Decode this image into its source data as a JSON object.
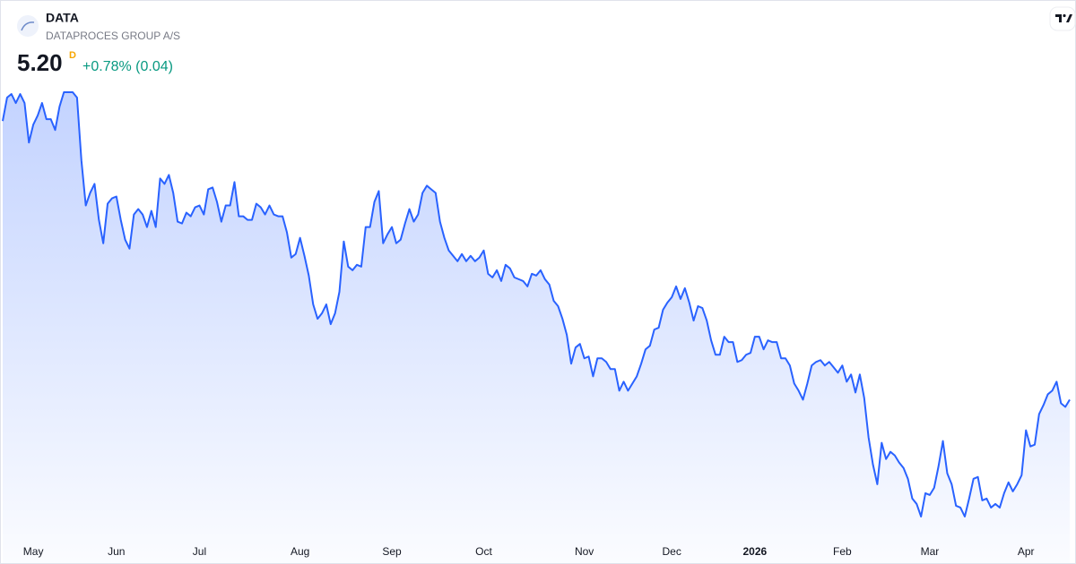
{
  "chart_data": {
    "type": "area",
    "title": "DATA",
    "subtitle": "DATAPROCES GROUP A/S",
    "price_label": "5.20",
    "interval": "D",
    "change_label": "+0.78% (0.04)",
    "series": [
      {
        "name": "DATA",
        "color": "#2962ff",
        "values": [
          6.75,
          6.88,
          6.9,
          6.85,
          6.9,
          6.85,
          6.63,
          6.73,
          6.78,
          6.85,
          6.76,
          6.76,
          6.7,
          6.83,
          6.91,
          6.91,
          6.91,
          6.88,
          6.53,
          6.28,
          6.35,
          6.4,
          6.2,
          6.07,
          6.29,
          6.32,
          6.33,
          6.2,
          6.09,
          6.04,
          6.23,
          6.26,
          6.23,
          6.16,
          6.25,
          6.16,
          6.43,
          6.4,
          6.45,
          6.35,
          6.19,
          6.18,
          6.24,
          6.22,
          6.27,
          6.28,
          6.23,
          6.37,
          6.38,
          6.3,
          6.19,
          6.28,
          6.28,
          6.41,
          6.22,
          6.22,
          6.2,
          6.2,
          6.29,
          6.27,
          6.23,
          6.28,
          6.23,
          6.22,
          6.22,
          6.13,
          5.99,
          6.01,
          6.1,
          6.0,
          5.89,
          5.73,
          5.65,
          5.68,
          5.73,
          5.62,
          5.68,
          5.8,
          6.08,
          5.94,
          5.92,
          5.95,
          5.94,
          6.16,
          6.16,
          6.3,
          6.36,
          6.07,
          6.12,
          6.16,
          6.07,
          6.09,
          6.18,
          6.26,
          6.19,
          6.23,
          6.35,
          6.39,
          6.37,
          6.35,
          6.19,
          6.1,
          6.03,
          6.0,
          5.97,
          6.01,
          5.97,
          6.0,
          5.97,
          5.99,
          6.03,
          5.9,
          5.88,
          5.92,
          5.86,
          5.95,
          5.93,
          5.88,
          5.87,
          5.86,
          5.83,
          5.9,
          5.89,
          5.92,
          5.87,
          5.84,
          5.75,
          5.72,
          5.65,
          5.56,
          5.4,
          5.49,
          5.51,
          5.43,
          5.44,
          5.33,
          5.43,
          5.43,
          5.41,
          5.37,
          5.37,
          5.25,
          5.3,
          5.25,
          5.29,
          5.33,
          5.4,
          5.48,
          5.5,
          5.59,
          5.6,
          5.7,
          5.74,
          5.77,
          5.83,
          5.76,
          5.82,
          5.74,
          5.64,
          5.72,
          5.71,
          5.64,
          5.53,
          5.45,
          5.45,
          5.55,
          5.52,
          5.52,
          5.41,
          5.42,
          5.45,
          5.46,
          5.55,
          5.55,
          5.48,
          5.53,
          5.52,
          5.52,
          5.43,
          5.43,
          5.39,
          5.29,
          5.25,
          5.2,
          5.29,
          5.39,
          5.41,
          5.42,
          5.39,
          5.41,
          5.38,
          5.35,
          5.39,
          5.3,
          5.34,
          5.24,
          5.34,
          5.21,
          4.99,
          4.84,
          4.73,
          4.96,
          4.87,
          4.91,
          4.89,
          4.85,
          4.82,
          4.76,
          4.65,
          4.62,
          4.55,
          4.68,
          4.67,
          4.71,
          4.83,
          4.97,
          4.79,
          4.73,
          4.61,
          4.6,
          4.55,
          4.65,
          4.76,
          4.77,
          4.64,
          4.65,
          4.6,
          4.62,
          4.6,
          4.68,
          4.74,
          4.69,
          4.73,
          4.78,
          5.03,
          4.94,
          4.95,
          5.12,
          5.17,
          5.23,
          5.25,
          5.3,
          5.18,
          5.16,
          5.2
        ]
      }
    ],
    "xticks": [
      {
        "value": 7,
        "label": "May"
      },
      {
        "value": 26,
        "label": "Jun"
      },
      {
        "value": 45,
        "label": "Jul"
      },
      {
        "value": 68,
        "label": "Aug"
      },
      {
        "value": 89,
        "label": "Sep"
      },
      {
        "value": 110,
        "label": "Oct"
      },
      {
        "value": 133,
        "label": "Nov"
      },
      {
        "value": 153,
        "label": "Dec"
      },
      {
        "value": 172,
        "label": "2026",
        "bold": true
      },
      {
        "value": 192,
        "label": "Feb"
      },
      {
        "value": 212,
        "label": "Mar"
      },
      {
        "value": 234,
        "label": "Apr"
      }
    ]
  }
}
